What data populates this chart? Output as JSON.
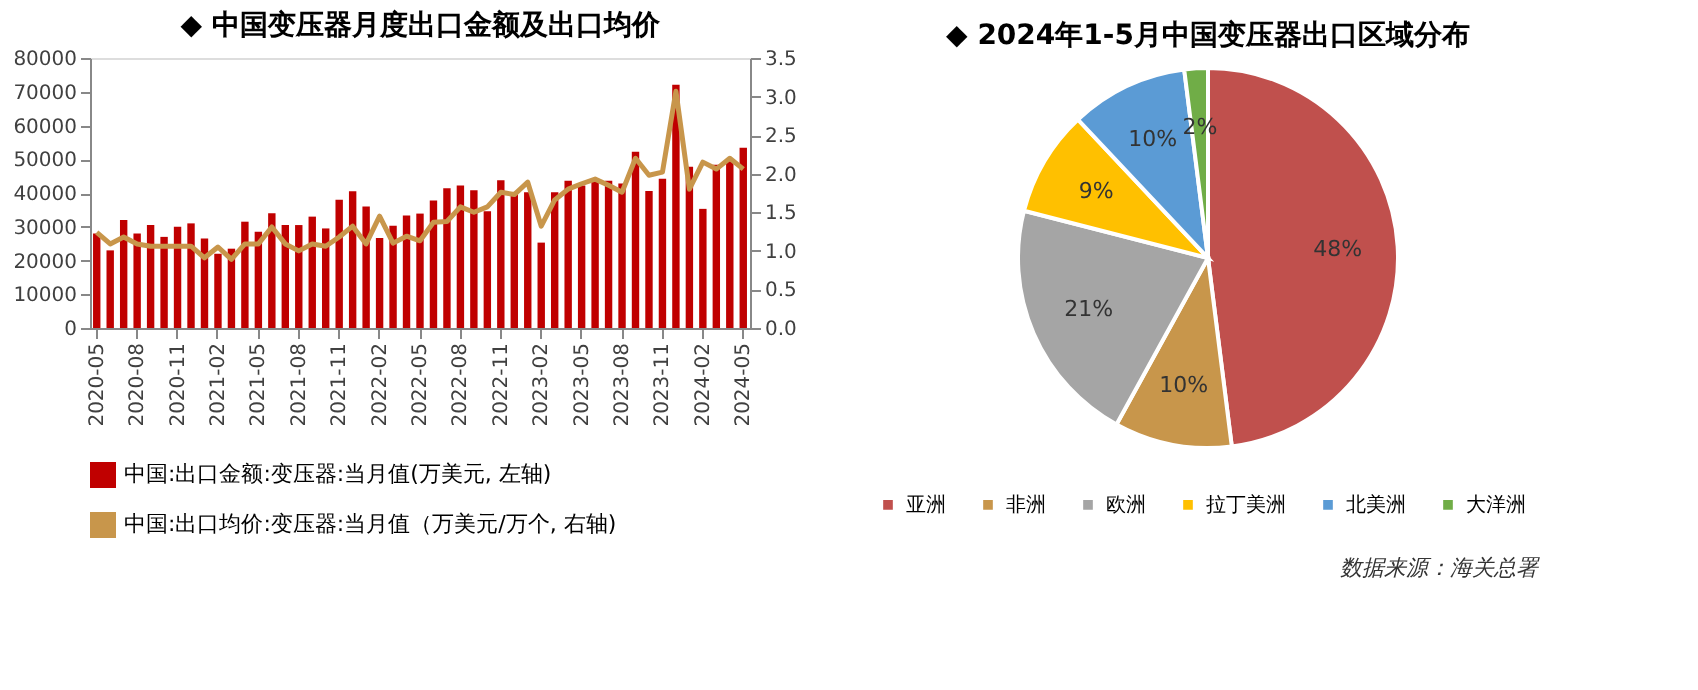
{
  "chart_data": [
    {
      "type": "bar",
      "title": "◆ 中国变压器月度出口金额及出口均价",
      "categories": [
        "2020-05",
        null,
        null,
        "2020-08",
        null,
        null,
        "2020-11",
        null,
        null,
        "2021-02",
        null,
        null,
        "2021-05",
        null,
        null,
        "2021-08",
        null,
        null,
        "2021-11",
        null,
        null,
        "2022-02",
        null,
        null,
        "2022-05",
        null,
        null,
        "2022-08",
        null,
        null,
        "2022-11",
        null,
        null,
        "2023-02",
        null,
        null,
        "2023-05",
        null,
        null,
        "2023-08",
        null,
        null,
        "2023-11",
        null,
        null,
        "2024-02",
        null,
        null,
        "2024-05"
      ],
      "series": [
        {
          "name": "中国:出口金额:变压器:当月值(万美元, 左轴)",
          "color": "#c00000",
          "type": "bar",
          "values": [
            28000,
            23000,
            32000,
            28000,
            30500,
            27000,
            30000,
            31000,
            26500,
            22000,
            23500,
            31500,
            28500,
            34000,
            30500,
            30500,
            33000,
            29500,
            38000,
            40500,
            36000,
            26700,
            30300,
            33300,
            33900,
            37800,
            41400,
            42200,
            40800,
            34600,
            43800,
            40200,
            40200,
            25300,
            40200,
            43600,
            42200,
            44200,
            43600,
            42800,
            52200,
            40600,
            44200,
            72100,
            47800,
            35300,
            48400,
            49400,
            53400
          ]
        },
        {
          "name": "中国:出口均价:变压器:当月值（万美元/万个, 右轴)",
          "color": "#c8964b",
          "type": "line",
          "axis": "y2",
          "values": [
            1.24,
            1.09,
            1.18,
            1.09,
            1.06,
            1.06,
            1.06,
            1.06,
            0.91,
            1.05,
            0.89,
            1.09,
            1.09,
            1.31,
            1.09,
            1.0,
            1.09,
            1.06,
            1.18,
            1.32,
            1.09,
            1.45,
            1.1,
            1.19,
            1.13,
            1.37,
            1.38,
            1.57,
            1.5,
            1.57,
            1.76,
            1.73,
            1.89,
            1.32,
            1.66,
            1.8,
            1.87,
            1.93,
            1.85,
            1.76,
            2.2,
            1.98,
            2.02,
            3.07,
            1.8,
            2.15,
            2.06,
            2.2,
            2.06
          ]
        }
      ],
      "ylim": [
        0,
        80000
      ],
      "yticks": [
        0,
        10000,
        20000,
        30000,
        40000,
        50000,
        60000,
        70000,
        80000
      ],
      "y2lim": [
        0,
        3.5
      ],
      "y2ticks": [
        {
          "value": 0,
          "label": "0.0"
        },
        {
          "value": 0.5,
          "label": "0.5"
        },
        {
          "value": 1,
          "label": "1.0"
        },
        {
          "value": 1.5,
          "label": "1.5"
        },
        {
          "value": 2,
          "label": "2.0"
        },
        {
          "value": 2.5,
          "label": "2.5"
        },
        {
          "value": 3,
          "label": "3.0"
        },
        {
          "value": 3.5,
          "label": "3.5"
        }
      ],
      "grid": false,
      "legend": "bottom",
      "line_style": "solid",
      "marker": "none"
    },
    {
      "type": "pie",
      "title": "◆ 2024年1-5月中国变压器出口区域分布",
      "categories": [
        "亚洲",
        "非洲",
        "欧洲",
        "拉丁美洲",
        "北美洲",
        "大洋洲"
      ],
      "values": [
        48,
        10,
        21,
        9,
        10,
        2
      ],
      "colors": [
        "#c0504d",
        "#c8964b",
        "#a5a5a5",
        "#ffc000",
        "#5b9bd5",
        "#70ad47"
      ],
      "value_labels": [
        "48%",
        "10%",
        "21%",
        "9%",
        "10%",
        "2%"
      ],
      "legend": "bottom",
      "annotations": [
        "数据来源：海关总署"
      ]
    }
  ]
}
